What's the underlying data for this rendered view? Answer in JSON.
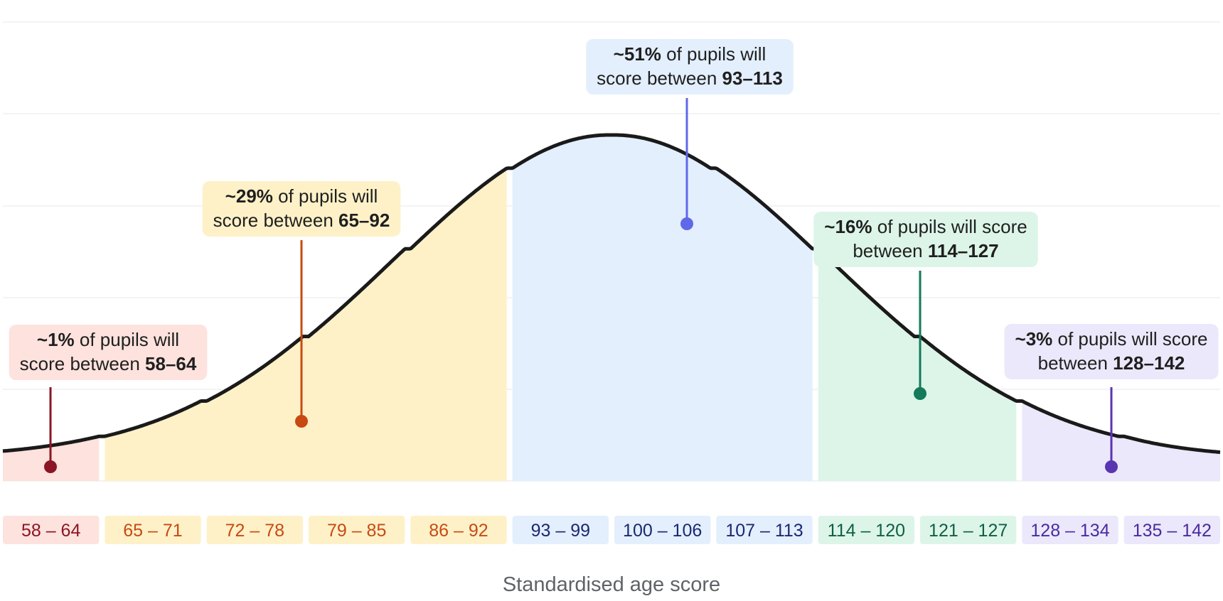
{
  "chart_data": {
    "type": "area",
    "xlabel": "Standardised age score",
    "distribution": {
      "kind": "normal",
      "mean": 100,
      "sd": 15
    },
    "xlim": [
      58,
      142
    ],
    "bins": [
      {
        "label": "58 – 64",
        "group": 0
      },
      {
        "label": "65 – 71",
        "group": 1
      },
      {
        "label": "72 – 78",
        "group": 1
      },
      {
        "label": "79 – 85",
        "group": 1
      },
      {
        "label": "86 – 92",
        "group": 1
      },
      {
        "label": "93 – 99",
        "group": 2
      },
      {
        "label": "100 – 106",
        "group": 2
      },
      {
        "label": "107 – 113",
        "group": 2
      },
      {
        "label": "114 – 120",
        "group": 3
      },
      {
        "label": "121 – 127",
        "group": 3
      },
      {
        "label": "128 – 134",
        "group": 4
      },
      {
        "label": "135 – 142",
        "group": 4
      }
    ],
    "bands": [
      {
        "percent": "~1%",
        "range": "58–64",
        "from": 58,
        "to": 64,
        "line1": [
          {
            "t": "~1%",
            "b": true
          },
          {
            "t": " of pupils will",
            "b": false
          }
        ],
        "line2": [
          {
            "t": "score between ",
            "b": false
          },
          {
            "t": "58–64",
            "b": true
          }
        ],
        "fill": "#fde2dd",
        "box": "#fde2dd",
        "stem": "#8b1525",
        "label_color": "#8b1525"
      },
      {
        "percent": "~29%",
        "range": "65–92",
        "from": 65,
        "to": 92,
        "line1": [
          {
            "t": "~29%",
            "b": true
          },
          {
            "t": " of pupils will",
            "b": false
          }
        ],
        "line2": [
          {
            "t": "score between ",
            "b": false
          },
          {
            "t": "65–92",
            "b": true
          }
        ],
        "fill": "#fef1c8",
        "box": "#fef1c8",
        "stem": "#c84a12",
        "label_color": "#c84a12"
      },
      {
        "percent": "~51%",
        "range": "93–113",
        "from": 93,
        "to": 113,
        "line1": [
          {
            "t": "~51%",
            "b": true
          },
          {
            "t": " of pupils will",
            "b": false
          }
        ],
        "line2": [
          {
            "t": "score between ",
            "b": false
          },
          {
            "t": "93–113",
            "b": true
          }
        ],
        "fill": "#e3effd",
        "box": "#e3effd",
        "stem": "#5f68e8",
        "label_color": "#1c2870"
      },
      {
        "percent": "~16%",
        "range": "114–127",
        "from": 114,
        "to": 127,
        "line1": [
          {
            "t": "~16%",
            "b": true
          },
          {
            "t": " of pupils will score",
            "b": false
          }
        ],
        "line2": [
          {
            "t": "between ",
            "b": false
          },
          {
            "t": "114–127",
            "b": true
          }
        ],
        "fill": "#dcf5e8",
        "box": "#dcf5e8",
        "stem": "#137a5a",
        "label_color": "#0f5f45"
      },
      {
        "percent": "~3%",
        "range": "128–142",
        "from": 128,
        "to": 142,
        "line1": [
          {
            "t": "~3%",
            "b": true
          },
          {
            "t": " of pupils will score",
            "b": false
          }
        ],
        "line2": [
          {
            "t": "between ",
            "b": false
          },
          {
            "t": "128–142",
            "b": true
          }
        ],
        "fill": "#ebe8fb",
        "box": "#ebe8fb",
        "stem": "#5a35b0",
        "label_color": "#4a2aa0"
      }
    ],
    "grid": true,
    "curve_color": "#1a1a1a"
  }
}
